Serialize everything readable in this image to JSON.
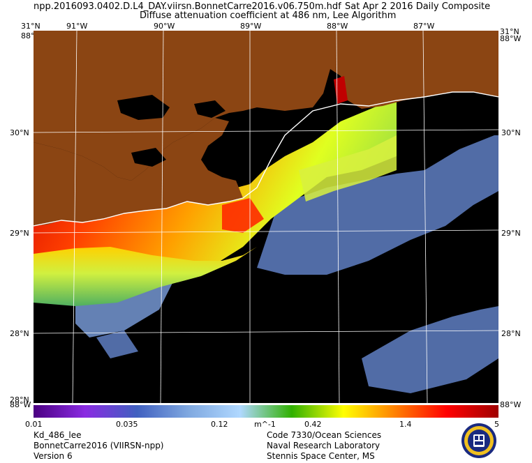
{
  "header": {
    "filename": "npp.2016093.0402.D.L4_DAY.viirsn.BonnetCarre2016.v06.750m.hdf",
    "date": "Sat Apr  2 2016 Daily Composite",
    "product": "Diffuse attenuation coefficient at 486 nm, Lee Algorithm"
  },
  "axes": {
    "top_lat": "31°N",
    "top_lat_right": "31°N",
    "bottom_lat": "28°N",
    "lon_labels": [
      "91°W",
      "90°W",
      "89°W",
      "88°W",
      "87°W"
    ],
    "lat_labels": [
      "30°N",
      "29°N",
      "28°N"
    ],
    "corner_left_top": "88°W",
    "corner_right_top": "88°W",
    "corner_left_bottom": "88°W",
    "corner_right_bottom": "88°W"
  },
  "colorbar": {
    "ticks": [
      "0.01",
      "0.035",
      "0.12",
      "m^-1",
      "0.42",
      "1.4",
      "5"
    ],
    "colors": [
      "#4b0082",
      "#8a2be2",
      "#4060c0",
      "#7fa8e0",
      "#b0d8ff",
      "#30b000",
      "#ffff00",
      "#ff8000",
      "#ff0000",
      "#a00000"
    ]
  },
  "footer": {
    "left": [
      "Kd_486_lee",
      "BonnetCarre2016 (VIIRSN-npp)",
      "Version 6"
    ],
    "right": [
      "Code 7330/Ocean Sciences",
      "Naval Research Laboratory",
      "Stennis Space Center, MS"
    ]
  },
  "colors": {
    "land": "#8b4513",
    "ocean_nodata": "#000000",
    "coast": "#ffffff"
  }
}
